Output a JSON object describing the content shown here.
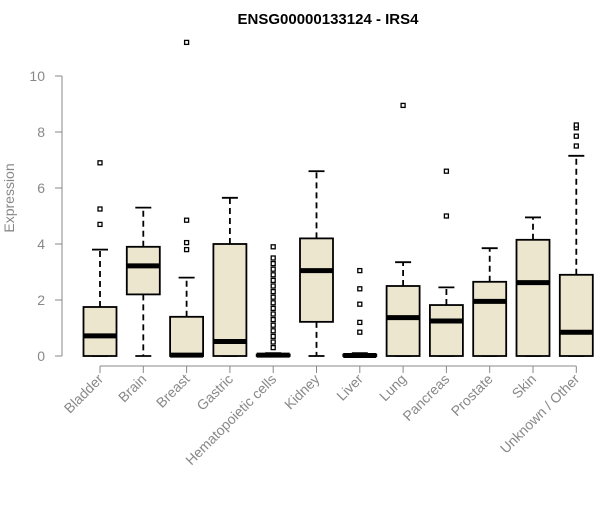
{
  "chart_data": {
    "type": "boxplot",
    "title": "ENSG00000133124 - IRS4",
    "xlabel": "",
    "ylabel": "Expression",
    "ylim": [
      0,
      11.2
    ],
    "yticks": [
      0,
      2,
      4,
      6,
      8,
      10
    ],
    "grid": false,
    "colors": {
      "box_fill": "#EDE6CF",
      "stroke": "#000000",
      "axis": "#888888",
      "tick_label": "#888888",
      "title": "#000000"
    },
    "categories": [
      "Bladder",
      "Brain",
      "Breast",
      "Gastric",
      "Hematopoietic cells",
      "Kidney",
      "Liver",
      "Lung",
      "Pancreas",
      "Prostate",
      "Skin",
      "Unknown / Other"
    ],
    "boxes": [
      {
        "category": "Bladder",
        "whisker_low": 0,
        "q1": 0,
        "median": 0.72,
        "q3": 1.75,
        "whisker_high": 3.8,
        "outliers": [
          4.7,
          5.25,
          6.9
        ]
      },
      {
        "category": "Brain",
        "whisker_low": 0,
        "q1": 2.2,
        "median": 3.22,
        "q3": 3.9,
        "whisker_high": 5.3,
        "outliers": []
      },
      {
        "category": "Breast",
        "whisker_low": 0,
        "q1": 0,
        "median": 0.03,
        "q3": 1.4,
        "whisker_high": 2.8,
        "outliers": [
          3.8,
          4.05,
          4.85,
          11.2
        ]
      },
      {
        "category": "Gastric",
        "whisker_low": 0,
        "q1": 0,
        "median": 0.52,
        "q3": 4.0,
        "whisker_high": 5.65,
        "outliers": []
      },
      {
        "category": "Hematopoietic cells",
        "whisker_low": 0,
        "q1": 0,
        "median": 0.03,
        "q3": 0.05,
        "whisker_high": 0.1,
        "outliers": [
          0.3,
          0.5,
          0.7,
          0.9,
          1.1,
          1.3,
          1.5,
          1.7,
          1.9,
          2.1,
          2.3,
          2.5,
          2.7,
          2.9,
          3.1,
          3.3,
          3.5,
          3.9
        ]
      },
      {
        "category": "Kidney",
        "whisker_low": 0,
        "q1": 1.22,
        "median": 3.05,
        "q3": 4.2,
        "whisker_high": 6.6,
        "outliers": []
      },
      {
        "category": "Liver",
        "whisker_low": 0,
        "q1": 0,
        "median": 0.02,
        "q3": 0.05,
        "whisker_high": 0.1,
        "outliers": [
          0.85,
          1.2,
          1.85,
          2.4,
          3.05
        ]
      },
      {
        "category": "Lung",
        "whisker_low": 0,
        "q1": 0,
        "median": 1.37,
        "q3": 2.5,
        "whisker_high": 3.35,
        "outliers": [
          8.95
        ]
      },
      {
        "category": "Pancreas",
        "whisker_low": 0,
        "q1": 0,
        "median": 1.25,
        "q3": 1.82,
        "whisker_high": 2.45,
        "outliers": [
          5.0,
          6.6
        ]
      },
      {
        "category": "Prostate",
        "whisker_low": 0,
        "q1": 0,
        "median": 1.95,
        "q3": 2.65,
        "whisker_high": 3.85,
        "outliers": []
      },
      {
        "category": "Skin",
        "whisker_low": 0,
        "q1": 0,
        "median": 2.62,
        "q3": 4.15,
        "whisker_high": 4.95,
        "outliers": []
      },
      {
        "category": "Unknown / Other",
        "whisker_low": 0,
        "q1": 0,
        "median": 0.85,
        "q3": 2.9,
        "whisker_high": 7.15,
        "outliers": [
          7.5,
          7.85,
          8.15,
          8.25
        ]
      }
    ]
  }
}
